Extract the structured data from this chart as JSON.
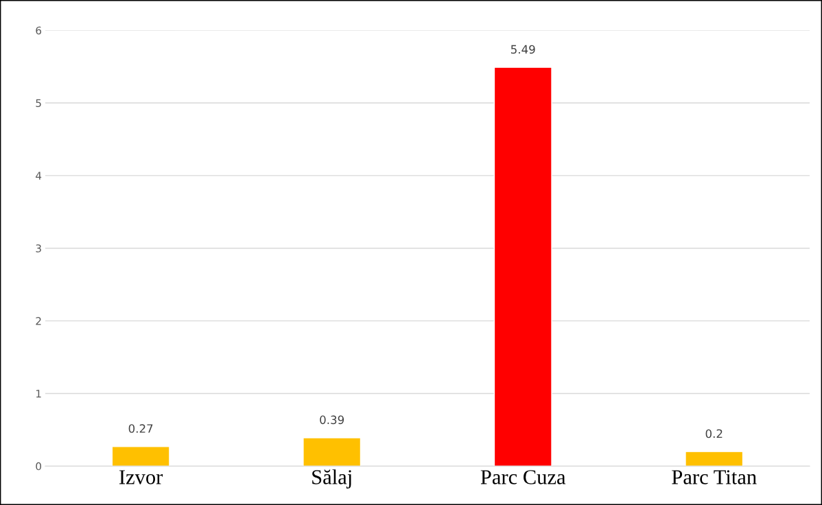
{
  "chart_data": {
    "type": "bar",
    "categories": [
      "Izvor",
      "Sălaj",
      "Parc Cuza",
      "Parc Titan"
    ],
    "values": [
      0.27,
      0.39,
      5.49,
      0.2
    ],
    "colors": [
      "#ffc000",
      "#ffc000",
      "#ff0000",
      "#ffc000"
    ],
    "ylim": [
      0,
      6
    ],
    "yticks": [
      0,
      1,
      2,
      3,
      4,
      5,
      6
    ],
    "grid": "y",
    "data_labels": true,
    "legend": false
  }
}
